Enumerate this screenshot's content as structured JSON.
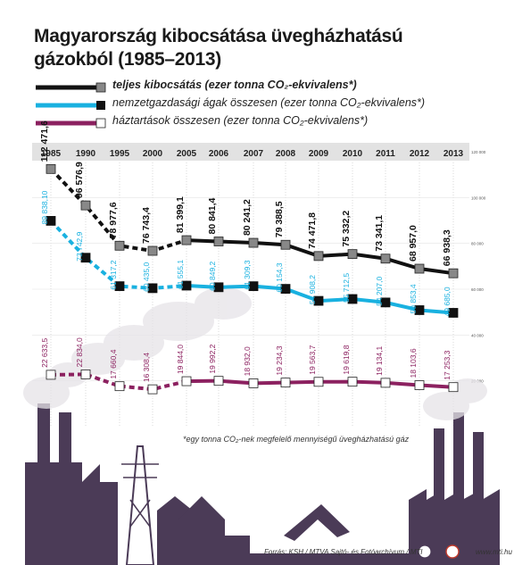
{
  "title": "Magyarország kibocsátása üvegházhatású gázokból (1985–2013)",
  "legend": [
    {
      "text": "teljes kibocsátás (ezer tonna CO₂-ekvivalens*)",
      "color": "#111111",
      "marker": "#888888",
      "bold": true
    },
    {
      "text": "nemzetgazdasági ágak összesen (ezer tonna CO₂-ekvivalens*)",
      "color": "#19b1e0",
      "marker": "#111111",
      "bold": false
    },
    {
      "text": "háztartások összesen (ezer tonna CO₂-ekvivalens*)",
      "color": "#8c2160",
      "marker": "#ffffff",
      "bold": false
    }
  ],
  "footnote": "*egy tonna CO₂-nek megfelelő mennyiségű üvegházhatású gáz",
  "source": "Forrás: KSH / MTVA Sajtó- és Fotóarchívum / MTI",
  "site": "www.mti.hu",
  "chart_data": {
    "type": "line",
    "categories": [
      "1985",
      "1990",
      "1995",
      "2000",
      "2005",
      "2006",
      "2007",
      "2008",
      "2009",
      "2010",
      "2011",
      "2012",
      "2013"
    ],
    "ylim": [
      0,
      120000
    ],
    "yticks": [
      "20 000",
      "40 000",
      "60 000",
      "80 000",
      "100 000",
      "120 000"
    ],
    "series": [
      {
        "name": "teljes kibocsátás (ezer tonna CO₂-ekvivalens*)",
        "values": [
          112471.6,
          96576.9,
          78977.6,
          76743.4,
          81399.1,
          80841.4,
          80241.2,
          79388.5,
          74471.8,
          75332.2,
          73341.1,
          68957.0,
          66938.3
        ],
        "labels": [
          "112 471,6",
          "96 576,9",
          "78 977,6",
          "76 743,4",
          "81 399,1",
          "80 841,4",
          "80 241,2",
          "79 388,5",
          "74 471,8",
          "75 332,2",
          "73 341,1",
          "68 957,0",
          "66 938,3"
        ]
      },
      {
        "name": "nemzetgazdasági ágak összesen (ezer tonna CO₂-ekvivalens*)",
        "values": [
          89838.1,
          73742.9,
          61317.2,
          60435.0,
          61555.1,
          60849.2,
          61309.3,
          60154.3,
          54908.2,
          55712.5,
          54207.0,
          50853.4,
          49685.0
        ],
        "labels": [
          "89 838,10",
          "73 742,9",
          "61 317,2",
          "60 435,0",
          "61 555,1",
          "60 849,2",
          "61 309,3",
          "60 154,3",
          "54 908,2",
          "55 712,5",
          "54 207,0",
          "50 853,4",
          "49 685,0"
        ]
      },
      {
        "name": "háztartások összesen (ezer tonna CO₂-ekvivalens*)",
        "values": [
          22633.5,
          22834.0,
          17660.4,
          16308.4,
          19844.0,
          19992.2,
          18932.0,
          19234.3,
          19563.7,
          19619.8,
          19134.1,
          18103.6,
          17253.3
        ],
        "labels": [
          "22 633,5",
          "22 834,0",
          "17 660,4",
          "16 308,4",
          "19 844,0",
          "19 992,2",
          "18 932,0",
          "19 234,3",
          "19 563,7",
          "19 619,8",
          "19 134,1",
          "18 103,6",
          "17 253,3"
        ]
      }
    ]
  }
}
